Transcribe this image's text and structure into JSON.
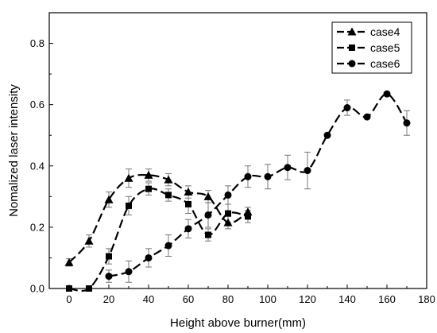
{
  "chart_data": {
    "type": "line",
    "title": "",
    "xlabel": "Height above burner(mm)",
    "ylabel": "Nomalized laser intensity",
    "xlim": [
      -10,
      180
    ],
    "ylim": [
      0,
      0.9
    ],
    "xticks": [
      "0",
      "20",
      "40",
      "60",
      "80",
      "100",
      "120",
      "140",
      "160",
      "180"
    ],
    "xtick_values": [
      0,
      20,
      40,
      60,
      80,
      100,
      120,
      140,
      160,
      180
    ],
    "yticks": [
      "0.0",
      "0.2",
      "0.4",
      "0.6",
      "0.8"
    ],
    "ytick_values": [
      0.0,
      0.2,
      0.4,
      0.6,
      0.8
    ],
    "grid": false,
    "legend_position": "top-right",
    "line_style": "dashed",
    "series": [
      {
        "name": "case4",
        "marker": "triangle",
        "x": [
          0,
          10,
          20,
          30,
          40,
          50,
          60,
          70,
          80,
          90
        ],
        "y": [
          0.085,
          0.155,
          0.29,
          0.36,
          0.37,
          0.355,
          0.315,
          0.3,
          0.215,
          0.25
        ],
        "err": [
          0.012,
          0.02,
          0.025,
          0.03,
          0.02,
          0.02,
          0.02,
          0.02,
          0.02,
          0.015
        ]
      },
      {
        "name": "case5",
        "marker": "square",
        "x": [
          0,
          10,
          20,
          30,
          40,
          50,
          60,
          70,
          80,
          90
        ],
        "y": [
          0.0,
          0.0,
          0.105,
          0.27,
          0.325,
          0.305,
          0.275,
          0.175,
          0.245,
          0.235
        ],
        "err": [
          0.0,
          0.0,
          0.025,
          0.03,
          0.02,
          0.02,
          0.03,
          0.02,
          0.03,
          0.02
        ]
      },
      {
        "name": "case6",
        "marker": "circle",
        "x": [
          20,
          30,
          40,
          50,
          60,
          70,
          80,
          90,
          100,
          110,
          120,
          130,
          140,
          150,
          160,
          170
        ],
        "y": [
          0.04,
          0.055,
          0.1,
          0.14,
          0.195,
          0.24,
          0.305,
          0.365,
          0.365,
          0.395,
          0.385,
          0.5,
          0.59,
          0.56,
          0.635,
          0.54
        ],
        "err": [
          0.02,
          0.035,
          0.03,
          0.035,
          0.03,
          0.04,
          0.03,
          0.035,
          0.04,
          0.04,
          0.06,
          0.0,
          0.025,
          0.0,
          0.0,
          0.04
        ]
      }
    ]
  }
}
